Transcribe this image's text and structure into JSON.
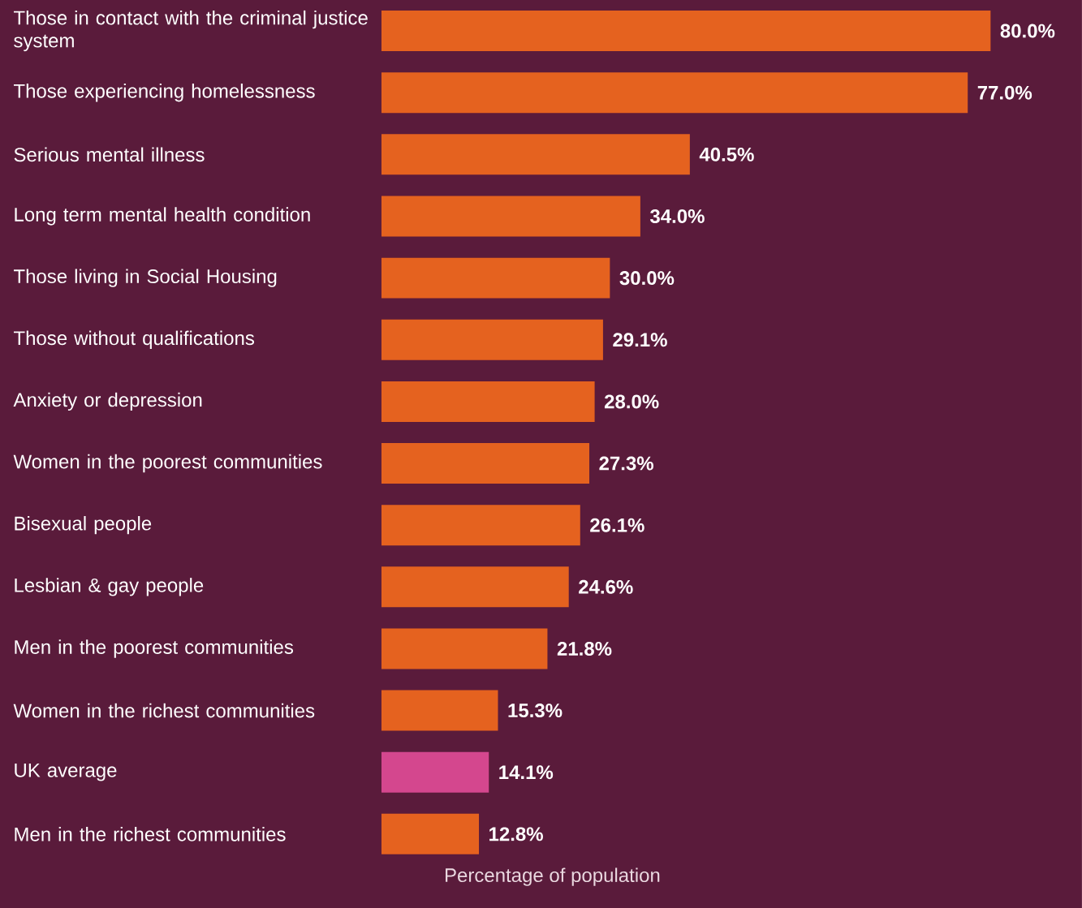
{
  "chart_data": {
    "type": "bar",
    "orientation": "horizontal",
    "xlabel": "Percentage of population",
    "categories": [
      "Those in contact with the criminal justice system",
      "Those experiencing homelessness",
      "Serious mental illness",
      "Long term mental health condition",
      "Those living in Social Housing",
      "Those without qualifications",
      "Anxiety or depression",
      "Women in the poorest communities",
      "Bisexual people",
      "Lesbian & gay people",
      "Men in the poorest communities",
      "Women in the richest communities",
      "UK average",
      "Men in the richest communities"
    ],
    "values": [
      80.0,
      77.0,
      40.5,
      34.0,
      30.0,
      29.1,
      28.0,
      27.3,
      26.1,
      24.6,
      21.8,
      15.3,
      14.1,
      12.8
    ],
    "value_labels": [
      "80.0%",
      "77.0%",
      "40.5%",
      "34.0%",
      "30.0%",
      "29.1%",
      "28.0%",
      "27.3%",
      "26.1%",
      "24.6%",
      "21.8%",
      "15.3%",
      "14.1%",
      "12.8%"
    ],
    "colors": [
      "#e5621f",
      "#e5621f",
      "#e5621f",
      "#e5621f",
      "#e5621f",
      "#e5621f",
      "#e5621f",
      "#e5621f",
      "#e5621f",
      "#e5621f",
      "#e5621f",
      "#e5621f",
      "#d4478e",
      "#e5621f"
    ],
    "xlim": [
      0,
      92
    ]
  }
}
